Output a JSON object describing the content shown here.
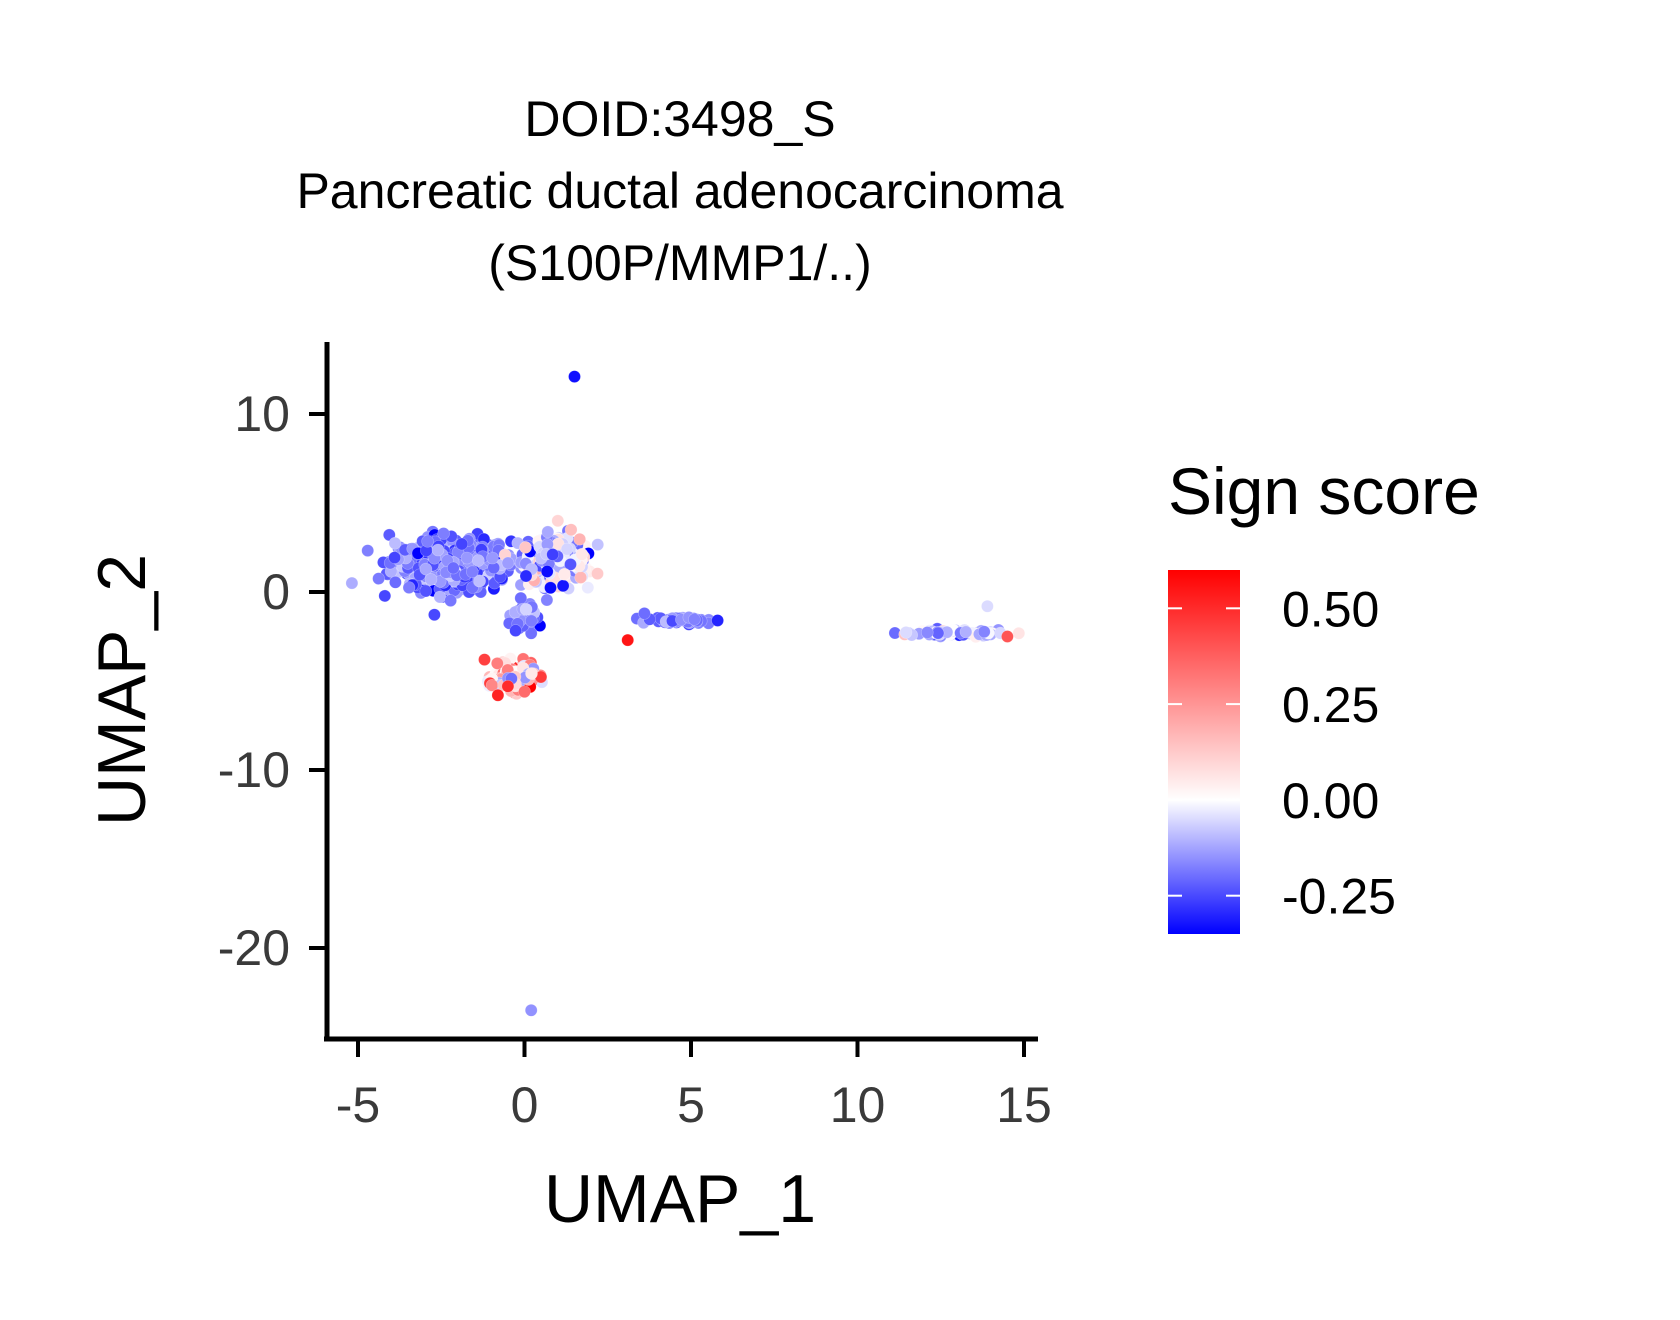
{
  "chart_data": {
    "type": "scatter",
    "title_lines": [
      "DOID:3498_S",
      "Pancreatic ductal adenocarcinoma",
      "(S100P/MMP1/..)"
    ],
    "xlabel": "UMAP_1",
    "ylabel": "UMAP_2",
    "xlim": [
      -6,
      15.5
    ],
    "ylim": [
      -25,
      14
    ],
    "x_ticks": [
      -5,
      0,
      5,
      10,
      15
    ],
    "x_tick_labels": [
      "-5",
      "0",
      "5",
      "10",
      "15"
    ],
    "y_ticks": [
      -20,
      -10,
      0,
      10
    ],
    "y_tick_labels": [
      "-20",
      "-10",
      "0",
      "10"
    ],
    "legend": {
      "title": "Sign score",
      "position": "right",
      "min": -0.35,
      "max": 0.6,
      "ticks": [
        0.5,
        0.25,
        0.0,
        -0.25
      ],
      "tick_labels": [
        "0.50",
        "0.25",
        "0.00",
        "-0.25"
      ],
      "colors": {
        "low": "#0000ff",
        "mid": "#ffffff",
        "high": "#ff0000"
      }
    },
    "clusters": [
      {
        "name": "",
        "center": [
          -2.2,
          1.6
        ],
        "spread": [
          1.6,
          1.3
        ],
        "n": 520,
        "score_mean": -0.2,
        "score_sd": 0.06
      },
      {
        "name": "",
        "center": [
          0.9,
          1.8
        ],
        "spread": [
          0.9,
          1.3
        ],
        "n": 220,
        "score_mean": -0.08,
        "score_sd": 0.12
      },
      {
        "name": "",
        "center": [
          0.0,
          -1.4
        ],
        "spread": [
          0.35,
          0.7
        ],
        "n": 50,
        "score_mean": -0.18,
        "score_sd": 0.06
      },
      {
        "name": "",
        "center": [
          -0.3,
          -4.8
        ],
        "spread": [
          0.55,
          0.65
        ],
        "n": 150,
        "score_mean": 0.12,
        "score_sd": 0.22
      },
      {
        "name": "",
        "center": [
          4.7,
          -1.6
        ],
        "spread": [
          0.8,
          0.15
        ],
        "n": 55,
        "score_mean": -0.2,
        "score_sd": 0.05
      },
      {
        "name": "",
        "center": [
          12.8,
          -2.3
        ],
        "spread": [
          1.3,
          0.15
        ],
        "n": 75,
        "score_mean": -0.12,
        "score_sd": 0.1
      }
    ],
    "points": [
      {
        "x": 1.5,
        "y": 12.1,
        "score": -0.33
      },
      {
        "x": 0.2,
        "y": -23.5,
        "score": -0.15
      },
      {
        "x": 3.1,
        "y": -2.7,
        "score": 0.55
      },
      {
        "x": 5.8,
        "y": -1.6,
        "score": -0.3
      },
      {
        "x": 3.6,
        "y": -1.2,
        "score": -0.2
      },
      {
        "x": 14.5,
        "y": -2.5,
        "score": 0.4
      },
      {
        "x": 13.9,
        "y": -0.8,
        "score": -0.05
      },
      {
        "x": 1.4,
        "y": 3.5,
        "score": 0.15
      },
      {
        "x": 1.0,
        "y": 4.0,
        "score": 0.1
      },
      {
        "x": 1.2,
        "y": 1.0,
        "score": 0.05
      },
      {
        "x": -0.5,
        "y": -5.3,
        "score": 0.5
      },
      {
        "x": -1.2,
        "y": -3.8,
        "score": 0.45
      },
      {
        "x": 0.0,
        "y": -5.6,
        "score": 0.35
      },
      {
        "x": -0.8,
        "y": -5.8,
        "score": 0.52
      }
    ]
  }
}
